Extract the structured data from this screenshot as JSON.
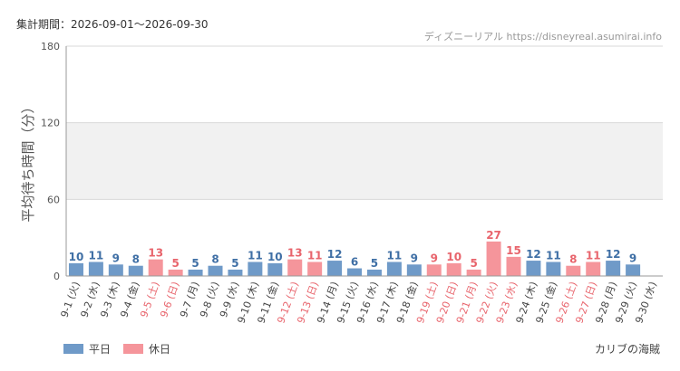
{
  "header": {
    "period_label": "集計期間：2026-09-01～2026-09-30",
    "source_label": "ディズニーリアル https://disneyreal.asumirai.info"
  },
  "attraction_name": "カリブの海賊",
  "colors": {
    "weekday": "#6f9ac8",
    "holiday": "#f5959b",
    "weekday_text": "#3f6fa5",
    "holiday_text": "#e8646c"
  },
  "legend": [
    {
      "label": "平日",
      "color": "#6f9ac8"
    },
    {
      "label": "休日",
      "color": "#f5959b"
    }
  ],
  "chart_data": {
    "type": "bar",
    "title": "",
    "xlabel": "",
    "ylabel": "平均待ち時間（分）",
    "ylim": [
      0,
      180
    ],
    "yticks": [
      0,
      60,
      120,
      180
    ],
    "grid": true,
    "categories": [
      "9-1 (火)",
      "9-2 (水)",
      "9-3 (木)",
      "9-4 (金)",
      "9-5 (土)",
      "9-6 (日)",
      "9-7 (月)",
      "9-8 (火)",
      "9-9 (水)",
      "9-10 (木)",
      "9-11 (金)",
      "9-12 (土)",
      "9-13 (日)",
      "9-14 (月)",
      "9-15 (火)",
      "9-16 (水)",
      "9-17 (木)",
      "9-18 (金)",
      "9-19 (土)",
      "9-20 (日)",
      "9-21 (月)",
      "9-22 (火)",
      "9-23 (水)",
      "9-24 (木)",
      "9-25 (金)",
      "9-26 (土)",
      "9-27 (日)",
      "9-28 (月)",
      "9-29 (火)",
      "9-30 (水)"
    ],
    "values": [
      10,
      11,
      9,
      8,
      13,
      5,
      5,
      8,
      5,
      11,
      10,
      13,
      11,
      12,
      6,
      5,
      11,
      9,
      9,
      10,
      5,
      27,
      15,
      12,
      11,
      8,
      11,
      12,
      9,
      null
    ],
    "holiday": [
      false,
      false,
      false,
      false,
      true,
      true,
      false,
      false,
      false,
      false,
      false,
      true,
      true,
      false,
      false,
      false,
      false,
      false,
      true,
      true,
      true,
      true,
      true,
      false,
      false,
      true,
      true,
      false,
      false,
      false
    ]
  }
}
